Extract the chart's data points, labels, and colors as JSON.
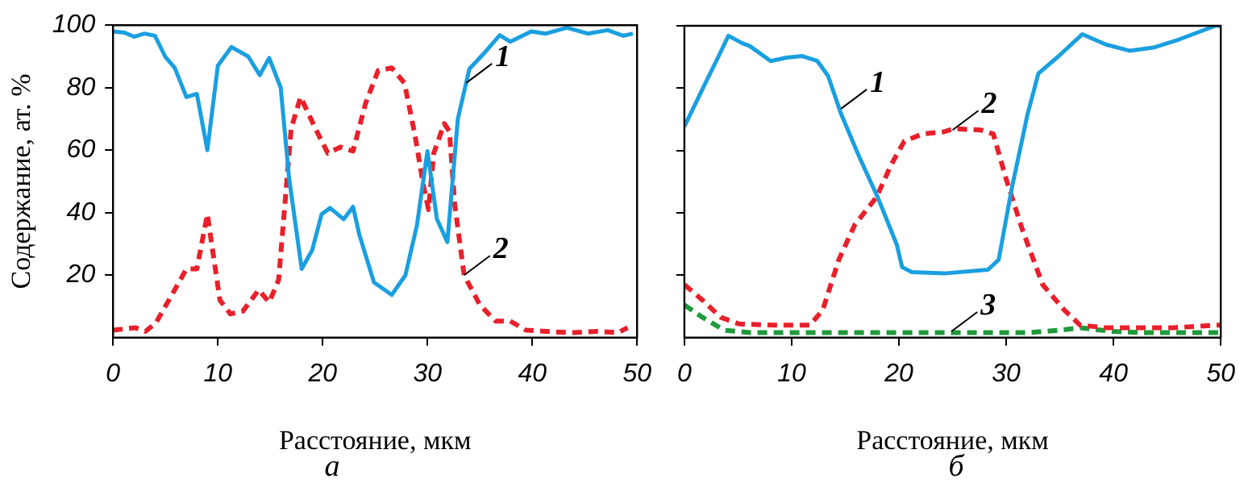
{
  "chart_data": [
    {
      "type": "line",
      "xlabel": "Расстояние, мкм",
      "ylabel": "Содержание, ат. %",
      "xlim": [
        0,
        50
      ],
      "xticks": [
        0,
        10,
        20,
        30,
        40,
        50
      ],
      "ylim": [
        0,
        100
      ],
      "yticks": [
        20,
        40,
        60,
        80,
        100
      ],
      "grid": false,
      "legend": false,
      "marker": "none",
      "series": [
        {
          "color": "#1a9fe0",
          "line_style": "solid",
          "x": [
            0,
            1.1,
            2,
            3,
            4,
            5,
            5.9,
            7,
            8,
            9,
            10,
            11.3,
            12.9,
            14,
            14.9,
            16,
            16.8,
            18,
            19,
            19.9,
            20.7,
            22,
            22.9,
            23.5,
            24.9,
            26.6,
            27.9,
            29,
            30,
            30.9,
            31.9,
            32.9,
            34,
            35.4,
            36.9,
            37.9,
            39.9,
            41.3,
            43.3,
            45.3,
            47.2,
            48.7,
            49.6
          ],
          "values": [
            98,
            97.6,
            96.3,
            97.3,
            96.6,
            89.8,
            86.3,
            77,
            78,
            60,
            87,
            93,
            90,
            84,
            89.5,
            80,
            51,
            22,
            28,
            39.5,
            41.5,
            37.9,
            41.9,
            33,
            17.7,
            13.7,
            20,
            36,
            59.7,
            38,
            30.6,
            70,
            86,
            91,
            96.8,
            94.7,
            98,
            97.3,
            99.2,
            97.3,
            98.4,
            96.6,
            97.3
          ]
        },
        {
          "color": "#e8202a",
          "line_style": "dashed",
          "x": [
            0,
            2.1,
            3.1,
            4.1,
            5.5,
            7,
            8,
            9,
            10.2,
            11.2,
            12.4,
            13.9,
            14.9,
            15.8,
            17,
            17.9,
            19.3,
            20.5,
            21.7,
            22.9,
            24.1,
            25.3,
            26.6,
            27.8,
            28.8,
            29.6,
            30.1,
            30.6,
            31.6,
            32.1,
            32.6,
            33.5,
            35,
            36.5,
            37.9,
            39.4,
            41.3,
            43.8,
            46.2,
            48.2,
            49.1
          ],
          "values": [
            2.4,
            3.2,
            2,
            4.8,
            13,
            22,
            22,
            39.5,
            12,
            7.6,
            8.5,
            15.3,
            11.3,
            18.5,
            67,
            77,
            67,
            59,
            61,
            59.7,
            75,
            85.5,
            86.3,
            81.5,
            65,
            49,
            41,
            59,
            68.5,
            66,
            42.7,
            20,
            10.5,
            5.3,
            5.3,
            2.4,
            2,
            1.6,
            2,
            1.6,
            3.2
          ]
        }
      ],
      "annotations": [
        {
          "text": "1",
          "x": 33.7,
          "y": 81.5
        },
        {
          "text": "2",
          "x": 33.5,
          "y": 20
        },
        "а"
      ]
    },
    {
      "type": "line",
      "xlabel": "Расстояние, мкм",
      "xlim": [
        0,
        50
      ],
      "xticks": [
        0,
        10,
        20,
        30,
        40,
        50
      ],
      "ylim": [
        0,
        100
      ],
      "yticks": [
        20,
        40,
        60,
        80,
        100
      ],
      "tick_labels": "x",
      "grid": false,
      "legend": false,
      "marker": "none",
      "series": [
        {
          "color": "#1a9fe0",
          "line_style": "solid",
          "x": [
            0,
            1.7,
            3.2,
            4.1,
            5.4,
            6.1,
            8.05,
            9.5,
            11,
            12.4,
            13.4,
            14.6,
            16.3,
            18.1,
            19.8,
            20.3,
            21.2,
            24.2,
            28.3,
            29.3,
            30.5,
            32,
            33,
            34.9,
            37.1,
            39.3,
            41.5,
            43.7,
            46.1,
            49.5,
            50
          ],
          "values": [
            67.7,
            79.8,
            90.3,
            96.8,
            94.4,
            93.5,
            88.7,
            89.8,
            90.3,
            88.7,
            83.9,
            71.8,
            58,
            44.4,
            29.8,
            22.6,
            21,
            20.6,
            21.8,
            25,
            47.6,
            71.8,
            84.7,
            90.3,
            97.3,
            94,
            92,
            93,
            95.6,
            100,
            100
          ]
        },
        {
          "color": "#e8202a",
          "line_style": "dashed",
          "x": [
            0,
            1.7,
            3.4,
            5.1,
            8.5,
            11.7,
            12.9,
            14.4,
            15.9,
            17.9,
            19.3,
            20.5,
            22.2,
            24.2,
            25.1,
            27.6,
            28.8,
            30,
            31.5,
            33.4,
            35.4,
            36.9,
            39.3,
            42.2,
            45.6,
            49.5,
            50
          ],
          "values": [
            17,
            12,
            6.5,
            4.4,
            4,
            4,
            8.9,
            25,
            36.3,
            45,
            55.6,
            63,
            65.3,
            66,
            67,
            66.6,
            65.3,
            50.8,
            34.7,
            17,
            8.9,
            4,
            3.2,
            3.2,
            3.2,
            4,
            4
          ]
        },
        {
          "color": "#1f9a3c",
          "line_style": "dashed",
          "x": [
            0,
            1.7,
            3.7,
            6.1,
            11,
            20.7,
            27.1,
            32,
            35,
            36.9,
            39.9,
            42.8,
            49.5,
            50
          ],
          "values": [
            10.5,
            6.5,
            2.4,
            1.6,
            1.6,
            1.6,
            1.6,
            1.6,
            2.4,
            3.2,
            2,
            1.6,
            1.6,
            1.6
          ]
        }
      ],
      "annotations": [
        {
          "text": "1",
          "x": 14.6,
          "y": 73.4
        },
        {
          "text": "2",
          "x": 25,
          "y": 66.6
        },
        {
          "text": "3",
          "x": 24.9,
          "y": 2
        },
        "б"
      ]
    }
  ]
}
